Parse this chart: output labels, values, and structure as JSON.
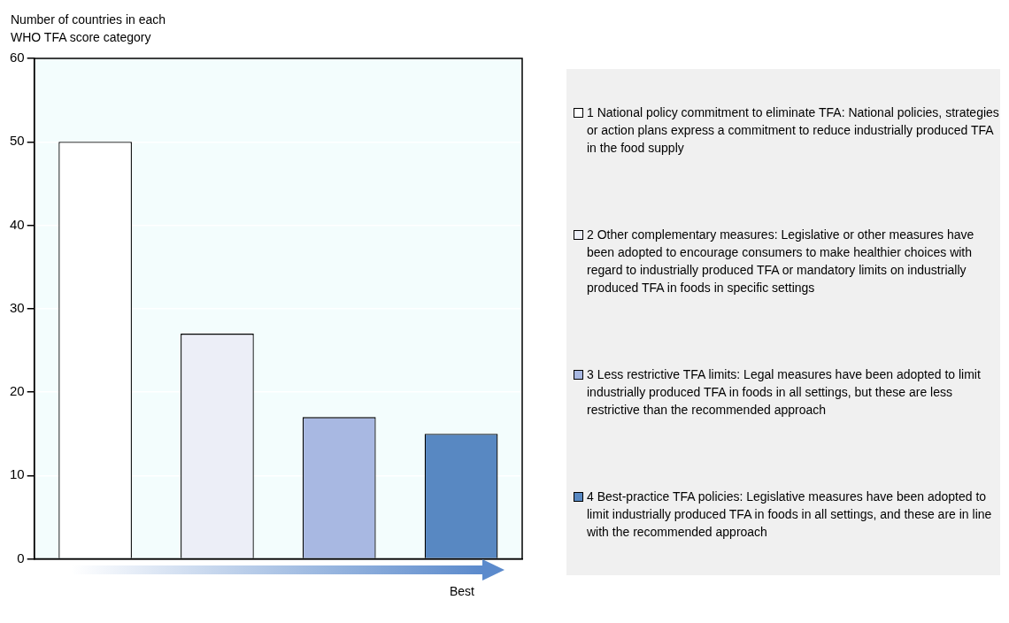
{
  "chart_data": {
    "type": "bar",
    "ylabel": "Number of countries in each\nWHO TFA score category",
    "categories": [
      null,
      null,
      null,
      null
    ],
    "series": [
      {
        "name": "1 National policy commitment to eliminate TFA: National policies, strategies or action plans express a commitment to reduce industrially produced TFA in the food supply",
        "color": "#ffffff",
        "values": [
          50,
          null,
          null,
          null
        ]
      },
      {
        "name": "2 Other complementary measures: Legislative or other measures have been adopted to encourage consumers to make healthier choices with regard to industrially produced TFA or mandatory limits on industrially produced TFA in foods in specific settings",
        "color": "#eceef7",
        "values": [
          null,
          27,
          null,
          null
        ]
      },
      {
        "name": "3 Less restrictive TFA limits: Legal measures have been adopted to limit industrially produced TFA in foods in all settings, but these are less restrictive than the recommended approach",
        "color": "#a8b8e2",
        "values": [
          null,
          null,
          17,
          null
        ]
      },
      {
        "name": "4 Best-practice TFA policies: Legislative measures have been adopted to limit industrially produced TFA in foods in all settings, and these are in line with the recommended approach",
        "color": "#5888c2",
        "values": [
          null,
          null,
          null,
          15
        ]
      }
    ],
    "ylim": [
      0,
      60
    ],
    "yticks": [
      0,
      10,
      20,
      30,
      40,
      50,
      60
    ],
    "grid": "y",
    "legend": "right",
    "annotations": [
      "Best"
    ]
  }
}
